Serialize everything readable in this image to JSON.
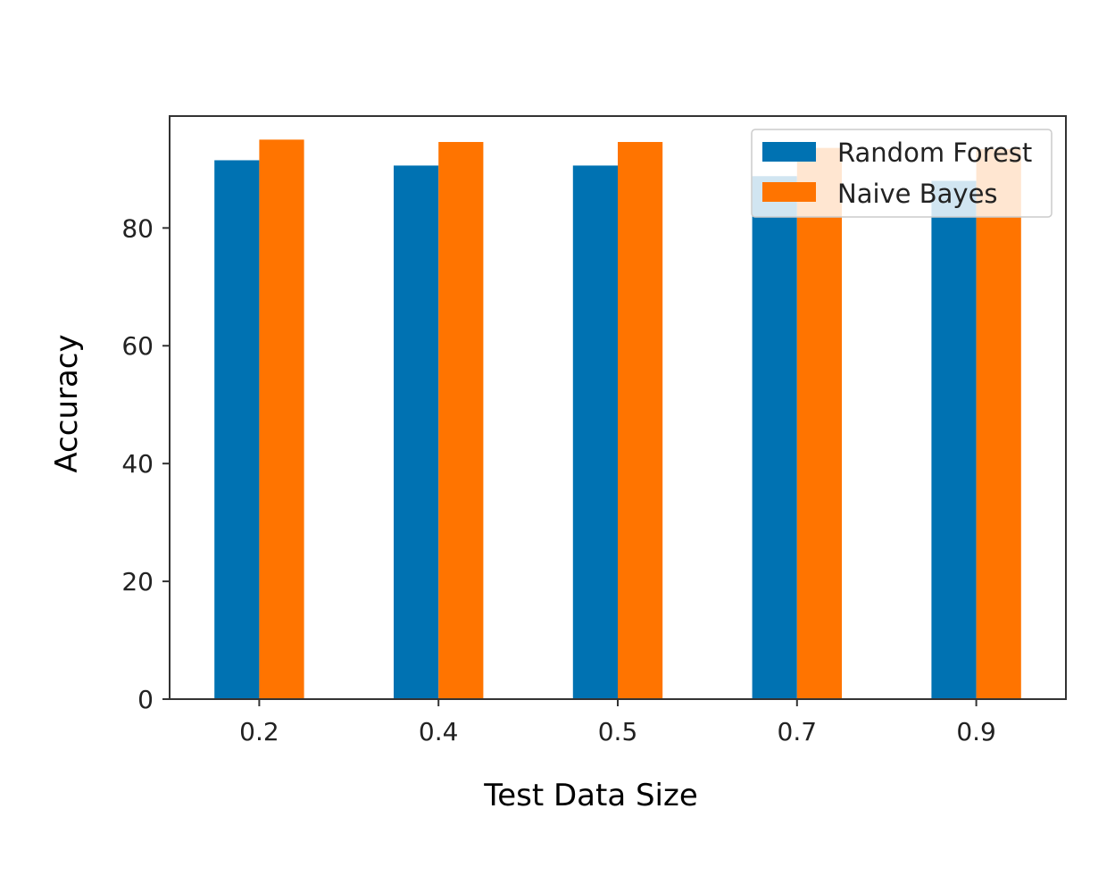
{
  "chart_data": {
    "type": "bar",
    "title": "",
    "xlabel": "Test Data Size",
    "ylabel": "Accuracy",
    "categories": [
      "0.2",
      "0.4",
      "0.5",
      "0.7",
      "0.9"
    ],
    "series": [
      {
        "name": "Random Forest",
        "color": "#0072b2",
        "values": [
          91.5,
          90.6,
          90.6,
          88.8,
          88.0
        ]
      },
      {
        "name": "Naive Bayes",
        "color": "#ff7400",
        "values": [
          95.0,
          94.6,
          94.6,
          93.6,
          93.4
        ]
      }
    ],
    "ylim": [
      0,
      99
    ],
    "yticks": [
      0,
      20,
      40,
      60,
      80
    ],
    "grid": false,
    "legend_position": "top-right"
  }
}
